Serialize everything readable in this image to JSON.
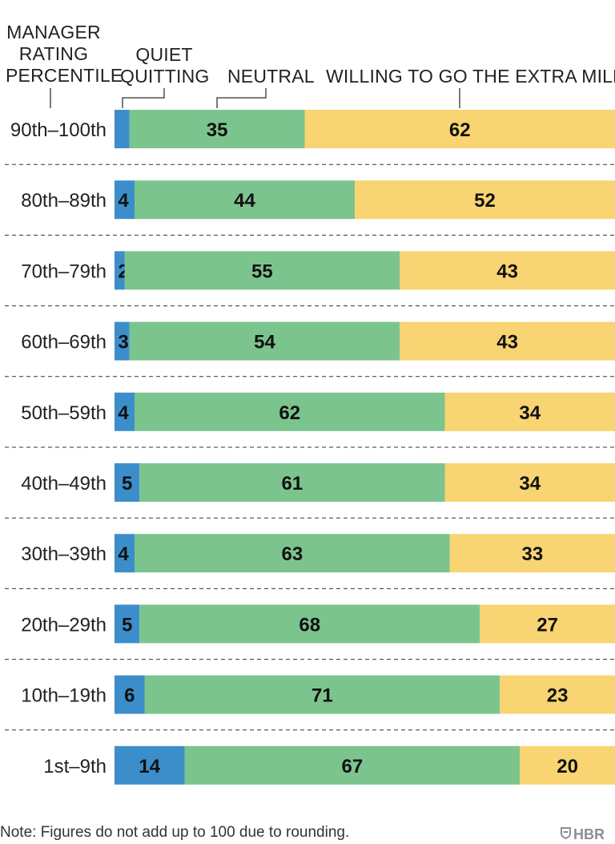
{
  "chart_data": {
    "type": "bar",
    "orientation": "horizontal",
    "stacked": true,
    "category_header": "MANAGER RATING PERCENTILE",
    "categories": [
      "90th–100th",
      "80th–89th",
      "70th–79th",
      "60th–69th",
      "50th–59th",
      "40th–49th",
      "30th–39th",
      "20th–29th",
      "10th–19th",
      "1st–9th"
    ],
    "series": [
      {
        "name": "QUIET QUITTING",
        "color": "#3c8ecb",
        "values": [
          3,
          4,
          2,
          3,
          4,
          5,
          4,
          5,
          6,
          14
        ]
      },
      {
        "name": "NEUTRAL",
        "color": "#7cc48e",
        "values": [
          35,
          44,
          55,
          54,
          62,
          61,
          63,
          68,
          71,
          67
        ]
      },
      {
        "name": "WILLING TO GO THE EXTRA MILE",
        "color": "#f8d472",
        "values": [
          62,
          52,
          43,
          43,
          34,
          34,
          33,
          27,
          23,
          20
        ]
      }
    ],
    "first_label_suffix": "%",
    "xlim": [
      0,
      100
    ]
  },
  "note": "Note: Figures do not add up to 100 due to rounding.",
  "brand": "HBR",
  "icons": {
    "brand_logo": "shield-icon"
  }
}
